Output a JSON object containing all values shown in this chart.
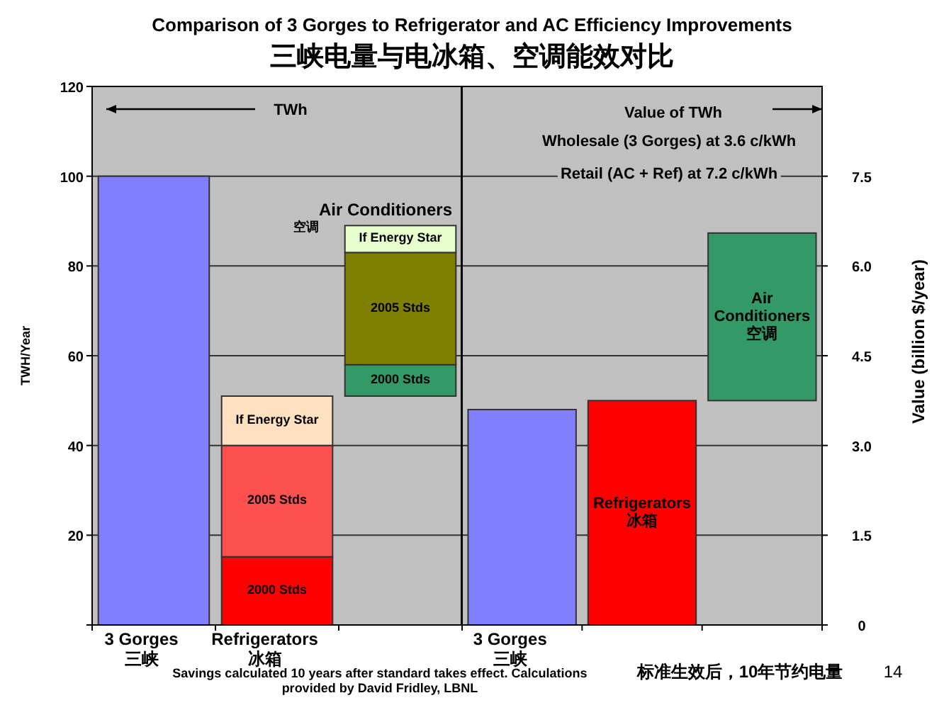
{
  "chart_data": [
    {
      "type": "bar",
      "title": "Comparison of 3 Gorges to Refrigerator and AC Efficiency Improvements",
      "subtitle": "三峡电量与电冰箱、空调能效对比",
      "ylabel": "TWH/Year",
      "categories": [
        "3 Gorges\n三峡",
        "Refrigerators\n冰箱",
        null
      ],
      "ylim": [
        0,
        120
      ],
      "yticks": [
        {
          "value": 0,
          "label": null
        },
        20,
        40,
        60,
        80,
        100,
        120
      ],
      "grid": "y",
      "legend": false,
      "series": [
        {
          "colors": [
            "#8080ff",
            null,
            null
          ],
          "values": [
            100,
            null,
            null
          ]
        },
        {
          "name": "2000 Stds",
          "colors": [
            null,
            "#ff0000",
            "#339966"
          ],
          "base": [
            null,
            0,
            51
          ],
          "values": [
            null,
            15.2,
            7
          ]
        },
        {
          "name": "2005 Stds",
          "colors": [
            null,
            "#ff5050",
            "#808000"
          ],
          "base": [
            null,
            15.2,
            58
          ],
          "values": [
            null,
            24.8,
            25
          ]
        },
        {
          "name": "If Energy Star",
          "colors": [
            null,
            "#ffe0c0",
            "#e6ffcc"
          ],
          "base": [
            null,
            40,
            83
          ],
          "values": [
            null,
            11,
            6
          ]
        }
      ],
      "annotations": [
        "TWh",
        "Air Conditioners",
        "空调",
        "Savings calculated 10 years after standard takes effect.  Calculations provided by David Fridley, LBNL",
        "标准生效后，10年节约电量",
        "14"
      ]
    },
    {
      "type": "bar",
      "categories": [
        "3 Gorges\n三峡",
        null,
        null
      ],
      "y2lim": [
        0,
        9
      ],
      "y2ticks": [
        0,
        1.5,
        {
          "value": 3,
          "label": "3.0"
        },
        4.5,
        {
          "value": 6,
          "label": "6.0"
        },
        7.5
      ],
      "y2label": "Value (billion $/year)",
      "grid": "y",
      "legend": false,
      "series": [
        {
          "axis": "y2",
          "color": "#8080ff",
          "values": [
            3.6,
            null,
            null
          ]
        },
        {
          "axis": "y2",
          "name": "Refrigerators\n冰箱",
          "color": "#ff0000",
          "values": [
            null,
            3.75,
            null
          ]
        },
        {
          "axis": "y2",
          "name": "Air\nConditioners\n空调",
          "color": "#339966",
          "base": [
            null,
            null,
            3.75
          ],
          "values": [
            null,
            null,
            2.8
          ]
        }
      ],
      "annotations": [
        "Value of TWh",
        "Wholesale (3 Gorges) at 3.6 c/kWh",
        "Retail (AC + Ref) at 7.2 c/kWh"
      ]
    }
  ]
}
